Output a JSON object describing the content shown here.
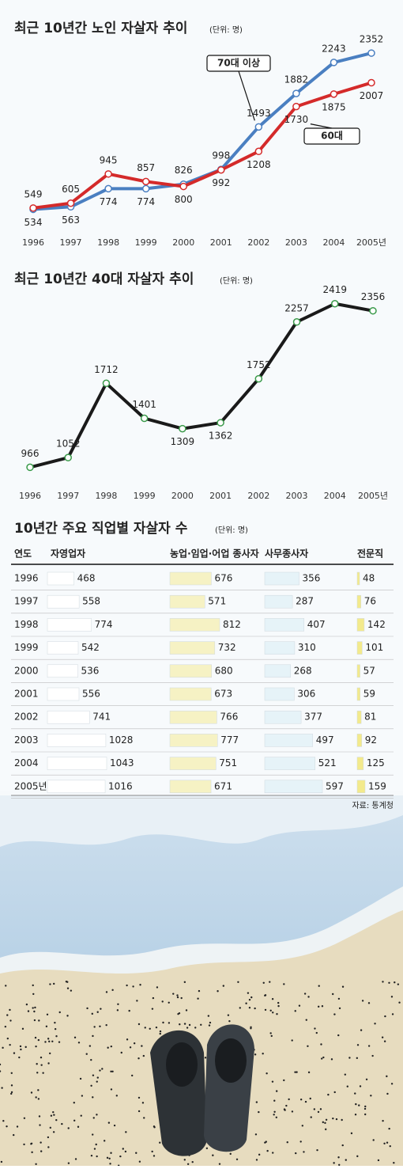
{
  "chart_data": [
    {
      "type": "line",
      "title": "최근 10년간 노인 자살자 추이",
      "subtitle": "(단위: 명)",
      "categories": [
        "1996",
        "1997",
        "1998",
        "1999",
        "2000",
        "2001",
        "2002",
        "2003",
        "2004",
        "2005년"
      ],
      "series": [
        {
          "name": "70대 이상",
          "color": "#4a7fc1",
          "values": [
            534,
            563,
            774,
            774,
            826,
            998,
            1493,
            1882,
            2243,
            2352
          ]
        },
        {
          "name": "60대",
          "color": "#d42a2a",
          "values": [
            549,
            605,
            945,
            857,
            800,
            992,
            1208,
            1730,
            1875,
            2007
          ]
        }
      ],
      "ylim": [
        400,
        2500
      ]
    },
    {
      "type": "line",
      "title": "최근 10년간 40대 자살자 추이",
      "subtitle": "(단위: 명)",
      "categories": [
        "1996",
        "1997",
        "1998",
        "1999",
        "2000",
        "2001",
        "2002",
        "2003",
        "2004",
        "2005년"
      ],
      "series": [
        {
          "name": "40대",
          "color": "#1a1a1a",
          "values": [
            966,
            1052,
            1712,
            1401,
            1309,
            1362,
            1752,
            2257,
            2419,
            2356
          ]
        }
      ],
      "ylim": [
        800,
        2600
      ]
    }
  ],
  "table": {
    "title": "10년간 주요 직업별 자살자 수",
    "subtitle": "(단위: 명)",
    "columns": [
      "연도",
      "자영업자",
      "농업·임업·어업 종사자",
      "사무종사자",
      "전문직"
    ],
    "colors": [
      "#ffffff",
      "#f6f2c4",
      "#e6f3f8",
      "#f3ea8c"
    ],
    "rows": [
      [
        "1996",
        468,
        676,
        356,
        48
      ],
      [
        "1997",
        558,
        571,
        287,
        76
      ],
      [
        "1998",
        774,
        812,
        407,
        142
      ],
      [
        "1999",
        542,
        732,
        310,
        101
      ],
      [
        "2000",
        536,
        680,
        268,
        57
      ],
      [
        "2001",
        556,
        673,
        306,
        59
      ],
      [
        "2002",
        741,
        766,
        377,
        81
      ],
      [
        "2003",
        1028,
        777,
        497,
        92
      ],
      [
        "2004",
        1043,
        751,
        521,
        125
      ],
      [
        "2005년",
        1016,
        671,
        597,
        159
      ]
    ],
    "source": "자료: 통계청"
  }
}
